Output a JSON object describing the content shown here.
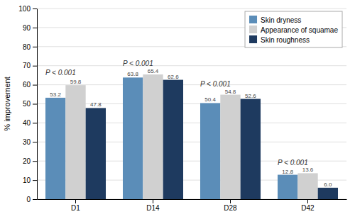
{
  "chart_data": {
    "type": "bar",
    "categories": [
      "D1",
      "D14",
      "D28",
      "D42"
    ],
    "series": [
      {
        "name": "Skin dryness",
        "color": "#5b8db8",
        "values": [
          53.2,
          63.8,
          50.4,
          12.8
        ],
        "value_labels": [
          "53.2",
          "63.8",
          "50.4",
          "12.8"
        ]
      },
      {
        "name": "Appearance of squamae",
        "color": "#d0d0d0",
        "values": [
          59.8,
          65.4,
          54.8,
          13.6
        ],
        "value_labels": [
          "59.8",
          "65.4",
          "54.8",
          "13.6"
        ]
      },
      {
        "name": "Skin roughness",
        "color": "#1e3a5f",
        "values": [
          47.8,
          62.6,
          52.6,
          6.0
        ],
        "value_labels": [
          "47.8",
          "62.6",
          "52.6",
          "6.0"
        ]
      }
    ],
    "y_label": "% improvement",
    "annotations": [
      {
        "text": "P < 0.001",
        "x": "D1",
        "y": 65
      },
      {
        "text": "P < 0.001",
        "x": "D14",
        "y": 70
      },
      {
        "text": "P < 0.001",
        "x": "D28",
        "y": 59
      },
      {
        "text": "P < 0.001",
        "x": "D42",
        "y": 18
      }
    ],
    "ylim": [
      0,
      100
    ],
    "yticks": [
      0,
      10,
      20,
      30,
      40,
      50,
      60,
      70,
      80,
      90,
      100
    ],
    "grid": true,
    "legend": "upper right",
    "data_labels": true
  }
}
